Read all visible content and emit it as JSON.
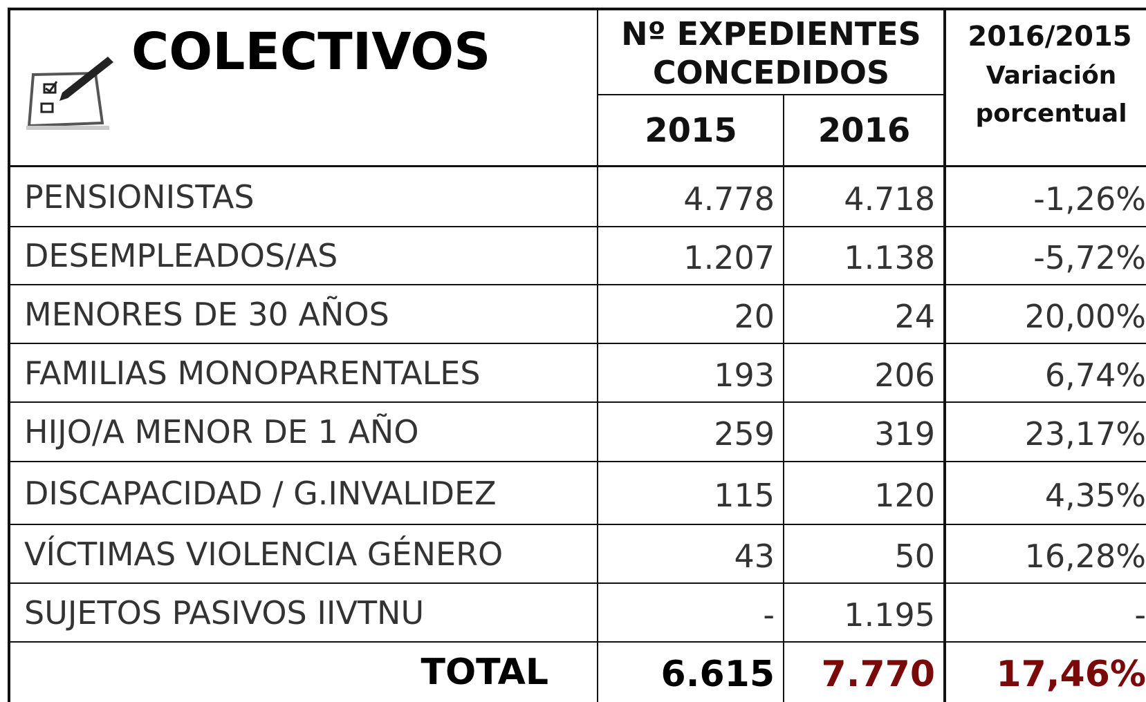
{
  "header": {
    "title": "COLECTIVOS",
    "group": "Nº EXPEDIENTES CONCEDIDOS",
    "years": [
      "2015",
      "2016"
    ],
    "variation_top": "2016/2015",
    "variation_sub": "Variación porcentual"
  },
  "table": {
    "rows": [
      [
        "PENSIONISTAS",
        "4.778",
        "4.718",
        "-1,26%"
      ],
      [
        "DESEMPLEADOS/AS",
        "1.207",
        "1.138",
        "-5,72%"
      ],
      [
        "MENORES DE 30 AÑOS",
        "20",
        "24",
        "20,00%"
      ],
      [
        "FAMILIAS MONOPARENTALES",
        "193",
        "206",
        "6,74%"
      ],
      [
        "HIJO/A MENOR DE 1 AÑO",
        "259",
        "319",
        "23,17%"
      ],
      [
        "DISCAPACIDAD / G.INVALIDEZ",
        "115",
        "120",
        "4,35%"
      ],
      [
        "VÍCTIMAS VIOLENCIA GÉNERO",
        "43",
        "50",
        "16,28%"
      ],
      [
        "SUJETOS PASIVOS IIVTNU",
        "-",
        "1.195",
        "-"
      ]
    ],
    "total": [
      "TOTAL",
      "6.615",
      "7.770",
      "17,46%"
    ]
  }
}
